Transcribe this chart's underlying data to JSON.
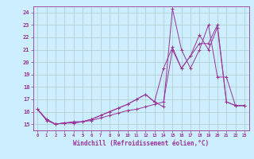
{
  "xlabel": "Windchill (Refroidissement éolien,°C)",
  "bg_color": "#cceeff",
  "grid_color": "#aacccc",
  "line_color": "#993399",
  "xlim": [
    -0.5,
    23.5
  ],
  "ylim": [
    14.5,
    24.5
  ],
  "xticks": [
    0,
    1,
    2,
    3,
    4,
    5,
    6,
    7,
    8,
    9,
    10,
    11,
    12,
    13,
    14,
    15,
    16,
    17,
    18,
    19,
    20,
    21,
    22,
    23
  ],
  "yticks": [
    15,
    16,
    17,
    18,
    19,
    20,
    21,
    22,
    23,
    24
  ],
  "series1": {
    "x": [
      0,
      1,
      2,
      3,
      4,
      5,
      6,
      7,
      8,
      9,
      10,
      11,
      12,
      13,
      14,
      15,
      16,
      17,
      18,
      19,
      20,
      21,
      22,
      23
    ],
    "y": [
      16.2,
      15.4,
      15.0,
      15.1,
      15.2,
      15.2,
      15.3,
      15.5,
      15.7,
      15.9,
      16.1,
      16.2,
      16.4,
      16.6,
      16.8,
      21.0,
      19.5,
      20.5,
      22.2,
      21.0,
      22.8,
      16.8,
      16.5,
      16.5
    ]
  },
  "series2": {
    "x": [
      0,
      1,
      2,
      3,
      4,
      5,
      6,
      7,
      8,
      9,
      10,
      11,
      12,
      13,
      14,
      15,
      16,
      17,
      18,
      19,
      20,
      21,
      22,
      23
    ],
    "y": [
      16.2,
      15.3,
      15.0,
      15.1,
      15.1,
      15.2,
      15.4,
      15.7,
      16.0,
      16.3,
      16.6,
      17.0,
      17.4,
      16.8,
      16.4,
      24.3,
      21.0,
      19.5,
      21.0,
      23.0,
      18.8,
      18.8,
      16.5,
      16.5
    ]
  },
  "series3": {
    "x": [
      0,
      1,
      2,
      3,
      4,
      5,
      6,
      7,
      8,
      9,
      10,
      11,
      12,
      13,
      14,
      15,
      16,
      17,
      18,
      19,
      20,
      21,
      22,
      23
    ],
    "y": [
      16.2,
      15.4,
      15.0,
      15.1,
      15.1,
      15.2,
      15.4,
      15.7,
      16.0,
      16.3,
      16.6,
      17.0,
      17.4,
      16.8,
      19.5,
      21.2,
      19.5,
      20.5,
      21.5,
      21.5,
      23.0,
      16.8,
      16.5,
      16.5
    ]
  }
}
